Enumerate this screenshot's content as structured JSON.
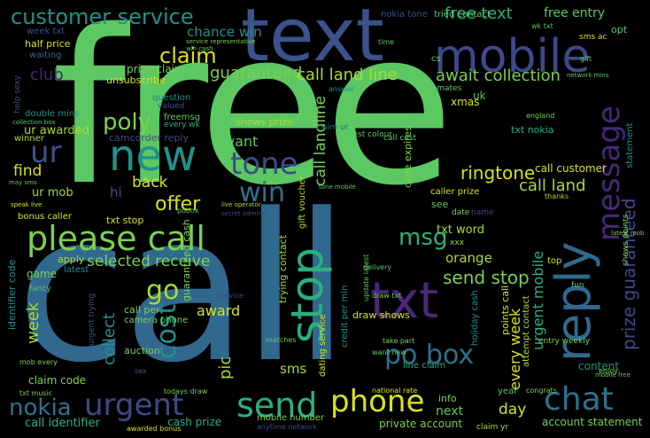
{
  "palette": {
    "background": "#000000",
    "green": "#5bc862",
    "light_green": "#7ad151",
    "yellow": "#d8e219",
    "lime": "#a8db34",
    "teal": "#21918c",
    "cyan": "#2ab07f",
    "blue": "#3b528b",
    "steel": "#31688e",
    "dark_blue": "#2c728e",
    "indigo": "#3e4989",
    "purple": "#482878",
    "dark_purple": "#440154"
  },
  "words": [
    {
      "id": "free",
      "text": "free"
    },
    {
      "id": "call",
      "text": "call"
    },
    {
      "id": "text",
      "text": "text"
    },
    {
      "id": "mobile",
      "text": "mobile"
    },
    {
      "id": "customer_service",
      "text": "customer service"
    },
    {
      "id": "free_text",
      "text": "free text"
    },
    {
      "id": "free_entry",
      "text": "free entry"
    },
    {
      "id": "chance_win",
      "text": "chance win"
    },
    {
      "id": "claim",
      "text": "claim"
    },
    {
      "id": "guaranteed",
      "text": "guaranteed"
    },
    {
      "id": "call_land_line",
      "text": "call land line"
    },
    {
      "id": "await_collection",
      "text": "await collection"
    },
    {
      "id": "prize_claim",
      "text": "prize claim"
    },
    {
      "id": "club",
      "text": "club"
    },
    {
      "id": "unsubscribe",
      "text": "unsubscribe"
    },
    {
      "id": "half_price",
      "text": "half price"
    },
    {
      "id": "waiting",
      "text": "waiting"
    },
    {
      "id": "week_txt",
      "text": "week txt"
    },
    {
      "id": "poly",
      "text": "poly"
    },
    {
      "id": "new",
      "text": "new"
    },
    {
      "id": "tone",
      "text": "tone"
    },
    {
      "id": "ur",
      "text": "ur"
    },
    {
      "id": "want",
      "text": "want"
    },
    {
      "id": "win",
      "text": "win"
    },
    {
      "id": "find",
      "text": "find"
    },
    {
      "id": "back",
      "text": "back"
    },
    {
      "id": "offer",
      "text": "offer"
    },
    {
      "id": "hi",
      "text": "hi"
    },
    {
      "id": "ur_mob",
      "text": "ur mob"
    },
    {
      "id": "ur_awarded",
      "text": "ur awarded"
    },
    {
      "id": "double_mins",
      "text": "double mins"
    },
    {
      "id": "winner",
      "text": "winner"
    },
    {
      "id": "camcorder_reply",
      "text": "camcorder reply"
    },
    {
      "id": "please_call",
      "text": "please call"
    },
    {
      "id": "selected_receive",
      "text": "selected receive"
    },
    {
      "id": "apply",
      "text": "apply"
    },
    {
      "id": "game",
      "text": "game"
    },
    {
      "id": "latest",
      "text": "latest"
    },
    {
      "id": "go",
      "text": "go"
    },
    {
      "id": "cost",
      "text": "cost"
    },
    {
      "id": "week",
      "text": "week"
    },
    {
      "id": "collect",
      "text": "collect"
    },
    {
      "id": "award",
      "text": "award"
    },
    {
      "id": "camera_phone",
      "text": "camera phone"
    },
    {
      "id": "call_per",
      "text": "call per"
    },
    {
      "id": "auction",
      "text": "auction"
    },
    {
      "id": "claim_code",
      "text": "claim code"
    },
    {
      "id": "nokia",
      "text": "nokia"
    },
    {
      "id": "urgent",
      "text": "urgent"
    },
    {
      "id": "send",
      "text": "send"
    },
    {
      "id": "phone",
      "text": "phone"
    },
    {
      "id": "chat",
      "text": "chat"
    },
    {
      "id": "call_identifier",
      "text": "call identifier"
    },
    {
      "id": "cash_prize",
      "text": "cash prize"
    },
    {
      "id": "bonus_caller",
      "text": "bonus caller"
    },
    {
      "id": "stop",
      "text": "stop"
    },
    {
      "id": "txt",
      "text": "txt"
    },
    {
      "id": "msg",
      "text": "msg"
    },
    {
      "id": "send_stop",
      "text": "send stop"
    },
    {
      "id": "orange",
      "text": "orange"
    },
    {
      "id": "po_box",
      "text": "po box"
    },
    {
      "id": "reply",
      "text": "reply"
    },
    {
      "id": "message",
      "text": "message"
    },
    {
      "id": "ringtone",
      "text": "ringtone"
    },
    {
      "id": "call_land",
      "text": "call land"
    },
    {
      "id": "call_customer",
      "text": "call customer"
    },
    {
      "id": "every_week",
      "text": "every week"
    },
    {
      "id": "urgent_mobile",
      "text": "urgent mobile"
    },
    {
      "id": "prize_guaranteed",
      "text": "prize guaranteed"
    },
    {
      "id": "txt_word",
      "text": "txt word"
    },
    {
      "id": "txt_stop",
      "text": "txt stop"
    },
    {
      "id": "sms",
      "text": "sms"
    },
    {
      "id": "pic",
      "text": "pic"
    },
    {
      "id": "next",
      "text": "next"
    },
    {
      "id": "day",
      "text": "day"
    },
    {
      "id": "info",
      "text": "info"
    },
    {
      "id": "account_statement",
      "text": "account statement"
    },
    {
      "id": "call_landline",
      "text": "call landline"
    },
    {
      "id": "shows_prize",
      "text": "shows prize"
    },
    {
      "id": "txt_nokia",
      "text": "txt nokia"
    },
    {
      "id": "statement",
      "text": "statement"
    },
    {
      "id": "top",
      "text": "top"
    },
    {
      "id": "content",
      "text": "content"
    },
    {
      "id": "points_call",
      "text": "points call"
    },
    {
      "id": "identifier_code",
      "text": "identifier code"
    },
    {
      "id": "trying_contact",
      "text": "trying contact"
    },
    {
      "id": "draw_shows",
      "text": "draw shows"
    },
    {
      "id": "guaranteed_cash",
      "text": "guaranteed cash"
    },
    {
      "id": "mobile_number",
      "text": "mobile number"
    },
    {
      "id": "dating_service",
      "text": "dating service"
    },
    {
      "id": "private_account",
      "text": "private account"
    },
    {
      "id": "xmas",
      "text": "xmas"
    },
    {
      "id": "year",
      "text": "year"
    },
    {
      "id": "gift_voucher",
      "text": "gift voucher"
    },
    {
      "id": "caller_prize",
      "text": "caller prize"
    },
    {
      "id": "code_expires",
      "text": "code expires"
    },
    {
      "id": "credit_per_min",
      "text": "credit per min"
    },
    {
      "id": "holiday_cash",
      "text": "holiday cash"
    },
    {
      "id": "attempt_contact",
      "text": "attempt contact"
    },
    {
      "id": "entry_weekly",
      "text": "entry weekly"
    },
    {
      "id": "nokia_tone",
      "text": "nokia tone"
    },
    {
      "id": "tried_contact",
      "text": "tried contact"
    },
    {
      "id": "opt",
      "text": "opt"
    },
    {
      "id": "question",
      "text": "question"
    },
    {
      "id": "valued",
      "text": "valued"
    },
    {
      "id": "freemsg",
      "text": "freemsg"
    },
    {
      "id": "every_wk",
      "text": "every wk"
    },
    {
      "id": "help_sexy",
      "text": "help sexy"
    },
    {
      "id": "uk",
      "text": "uk"
    },
    {
      "id": "ur_mates",
      "text": "ur mates"
    },
    {
      "id": "answer",
      "text": "answer"
    },
    {
      "id": "claim_ur",
      "text": "claim ur"
    },
    {
      "id": "latest_colour",
      "text": "latest colour"
    },
    {
      "id": "call_cost",
      "text": "call cost"
    },
    {
      "id": "england",
      "text": "england"
    },
    {
      "id": "cs",
      "text": "cs"
    },
    {
      "id": "see",
      "text": "see"
    },
    {
      "id": "name",
      "text": "name"
    },
    {
      "id": "date",
      "text": "date"
    },
    {
      "id": "fancy",
      "text": "fancy"
    },
    {
      "id": "xxx",
      "text": "xxx"
    },
    {
      "id": "fun",
      "text": "fun"
    },
    {
      "id": "matches",
      "text": "matches"
    },
    {
      "id": "todays_draw",
      "text": "todays draw"
    },
    {
      "id": "awarded_bonus",
      "text": "awarded bonus"
    },
    {
      "id": "txt_music",
      "text": "txt music"
    },
    {
      "id": "mob_every",
      "text": "mob every"
    },
    {
      "id": "urgent_trying",
      "text": "urgent trying"
    },
    {
      "id": "anytime_network",
      "text": "anytime network"
    },
    {
      "id": "national_rate",
      "text": "national rate"
    },
    {
      "id": "take_part",
      "text": "take part"
    },
    {
      "id": "want_new",
      "text": "want new"
    },
    {
      "id": "line_claim",
      "text": "line claim"
    },
    {
      "id": "congrats",
      "text": "congrats"
    },
    {
      "id": "claim_yr",
      "text": "claim yr"
    },
    {
      "id": "enjoy",
      "text": "enjoy"
    },
    {
      "id": "pobox",
      "text": "pobox"
    },
    {
      "id": "thanks",
      "text": "thanks"
    },
    {
      "id": "shows_points",
      "text": "shows points"
    },
    {
      "id": "service",
      "text": "service"
    },
    {
      "id": "sex",
      "text": "sex"
    },
    {
      "id": "time",
      "text": "time"
    },
    {
      "id": "gift",
      "text": "gift"
    },
    {
      "id": "sms_ac",
      "text": "sms ac"
    },
    {
      "id": "wk_txt",
      "text": "wk txt"
    },
    {
      "id": "draw_txt",
      "text": "draw txt"
    },
    {
      "id": "update_latest",
      "text": "update latest"
    },
    {
      "id": "service_representative",
      "text": "service representative"
    },
    {
      "id": "tone_mobile",
      "text": "tone mobile"
    },
    {
      "id": "network_mins",
      "text": "network mins"
    },
    {
      "id": "delivery",
      "text": "delivery"
    },
    {
      "id": "live_operator",
      "text": "live operator"
    },
    {
      "id": "land_line",
      "text": "land line"
    },
    {
      "id": "may_sms",
      "text": "may sms"
    },
    {
      "id": "speak_live",
      "text": "speak live"
    },
    {
      "id": "secret_admirer",
      "text": "secret admirer"
    },
    {
      "id": "latest_mob",
      "text": "latest mob"
    },
    {
      "id": "mobile_free",
      "text": "mobile free"
    },
    {
      "id": "win_cash",
      "text": "win cash"
    },
    {
      "id": "collection_box",
      "text": "collection box"
    }
  ]
}
